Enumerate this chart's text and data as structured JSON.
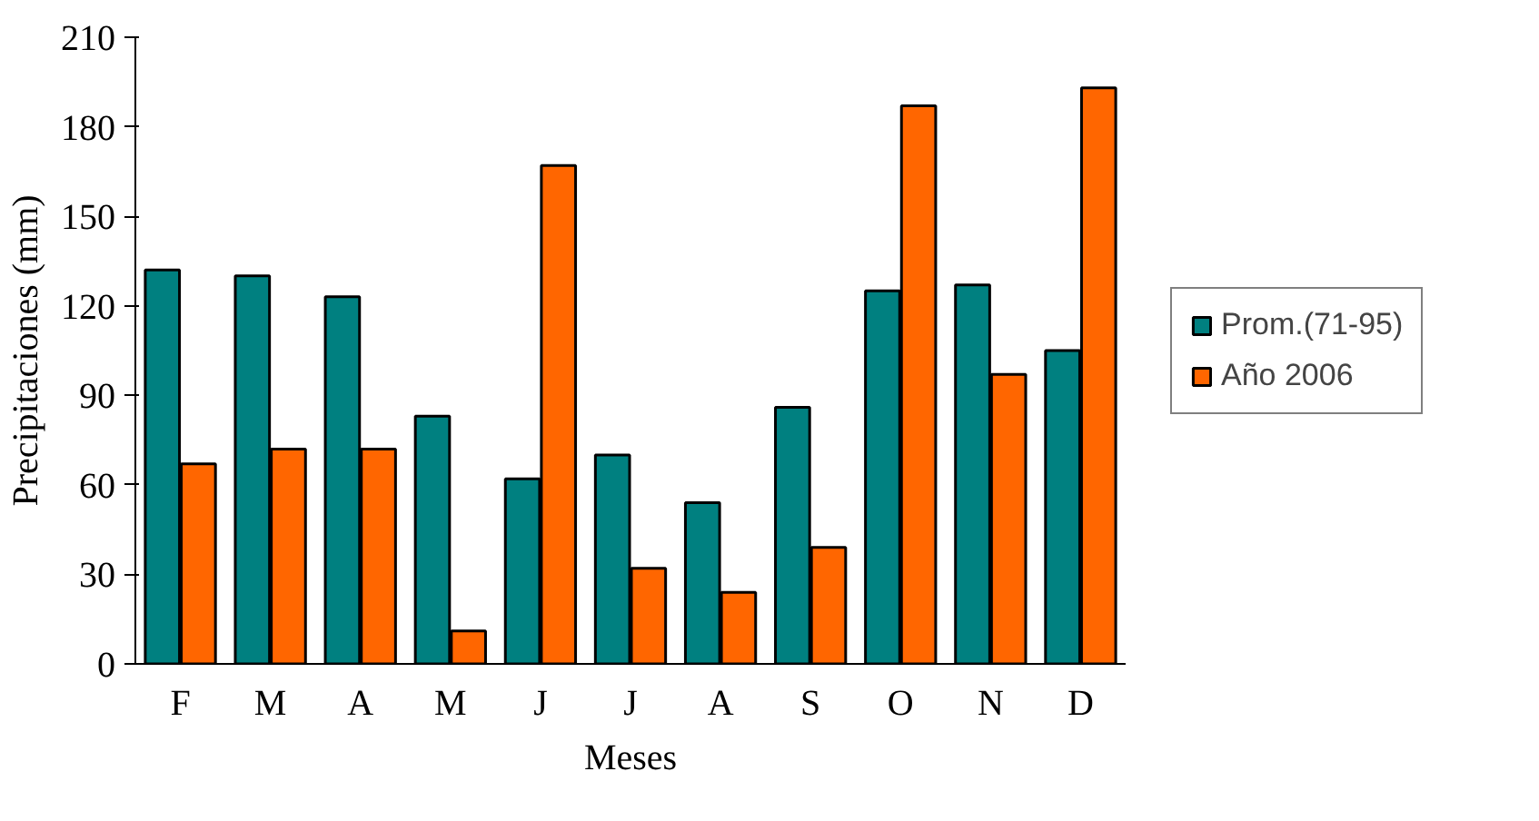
{
  "chart_data": {
    "type": "bar",
    "xlabel": "Meses",
    "ylabel": "Precipitaciones (mm)",
    "categories": [
      "F",
      "M",
      "A",
      "M",
      "J",
      "J",
      "A",
      "S",
      "O",
      "N",
      "D"
    ],
    "series": [
      {
        "name": "Prom.(71-95)",
        "color": "#008080",
        "values": [
          132,
          130,
          123,
          83,
          62,
          70,
          54,
          86,
          125,
          127,
          105
        ]
      },
      {
        "name": "Año 2006",
        "color": "#ff6600",
        "values": [
          67,
          72,
          72,
          11,
          167,
          32,
          24,
          39,
          187,
          97,
          193
        ]
      }
    ],
    "ylim": [
      0,
      210
    ],
    "yticks": [
      0,
      30,
      60,
      90,
      120,
      150,
      180,
      210
    ],
    "grid": false,
    "legend": "right"
  }
}
